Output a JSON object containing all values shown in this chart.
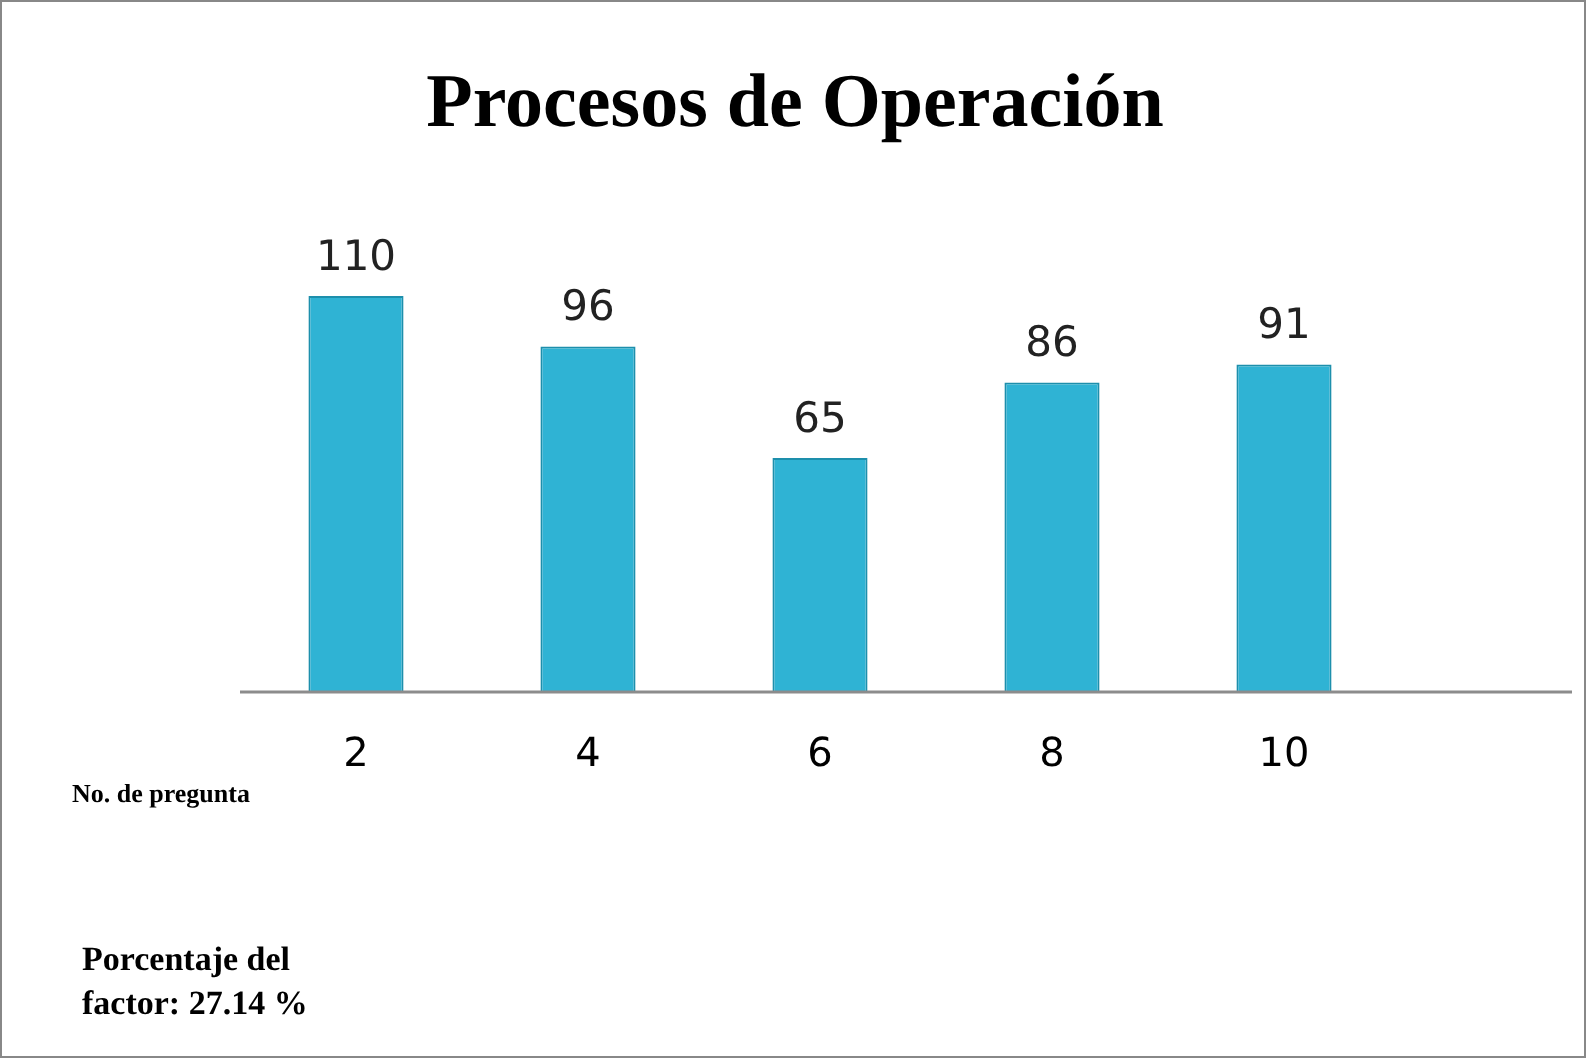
{
  "chart_data": {
    "type": "bar",
    "title": "Procesos de Operación",
    "xlabel": "No. de pregunta",
    "categories": [
      "2",
      "4",
      "6",
      "8",
      "10"
    ],
    "values": [
      110,
      96,
      65,
      86,
      91
    ],
    "color": "#2fb3d4",
    "data_labels": true,
    "grid": false,
    "legend": false,
    "tick_labels": "x",
    "annotations": [
      "Porcentaje del factor: 27.14 %"
    ]
  }
}
